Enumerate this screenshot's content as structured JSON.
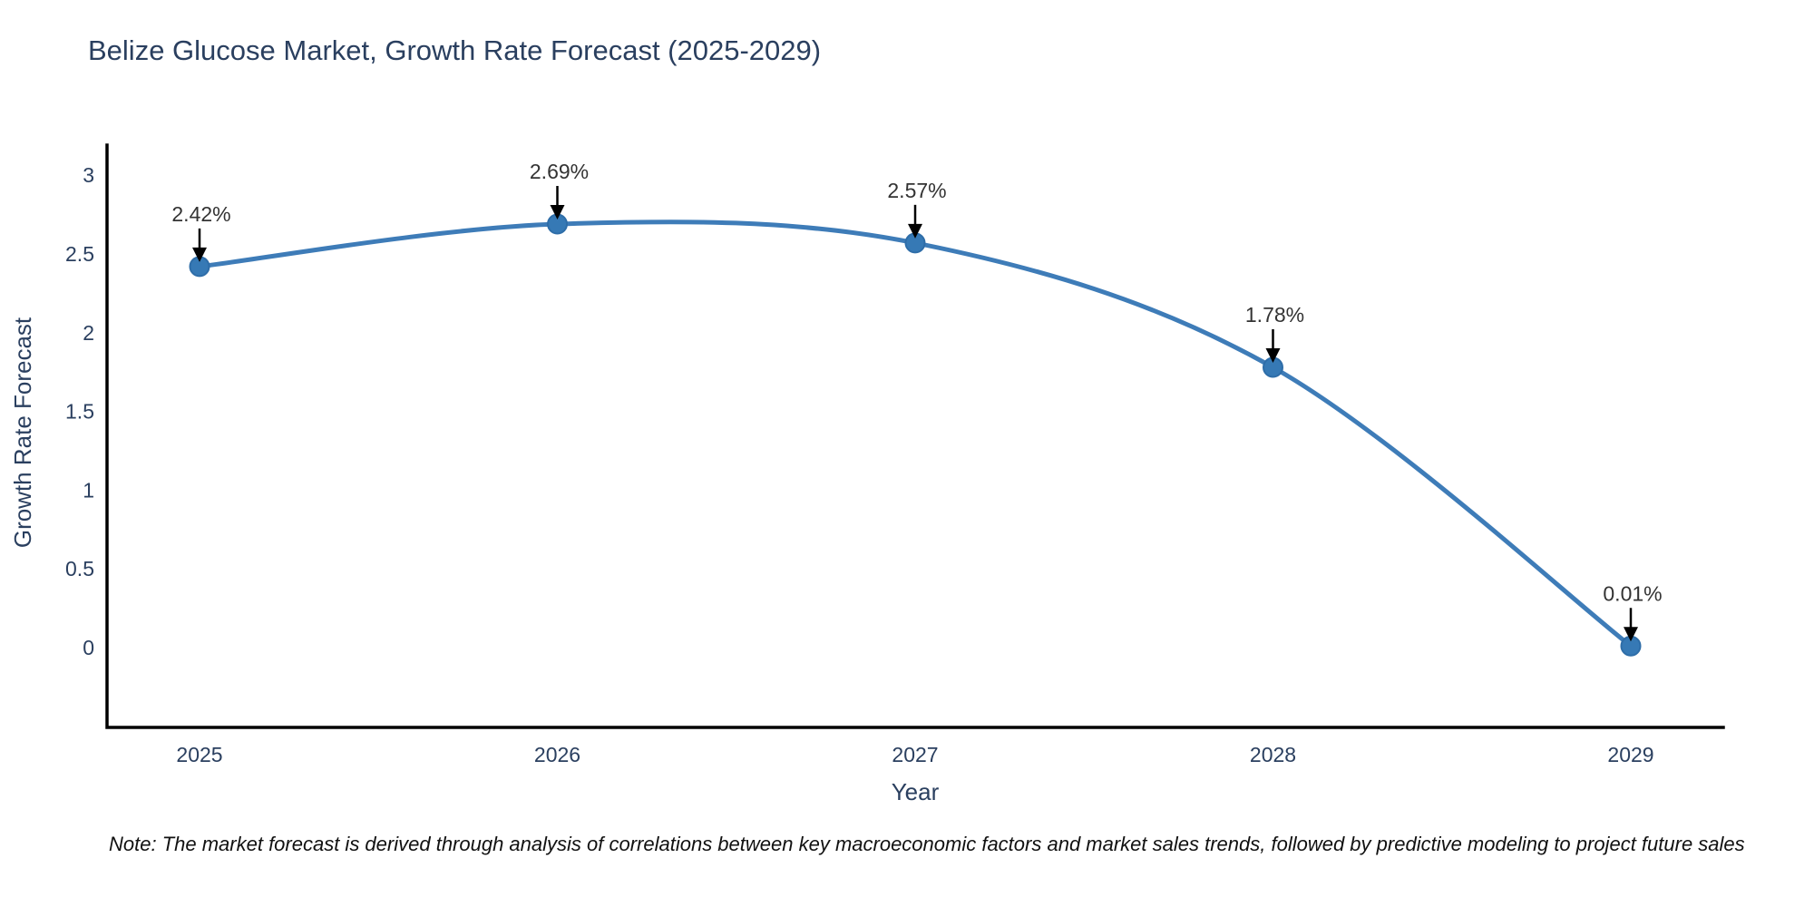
{
  "chart": {
    "title": "Belize Glucose Market, Growth Rate Forecast (2025-2029)",
    "xlabel": "Year",
    "ylabel": "Growth Rate Forecast",
    "note": "Note: The market forecast is derived through analysis of correlations between key macroeconomic factors and market sales trends, followed by predictive modeling to project future sales"
  },
  "chart_data": {
    "type": "line",
    "title": "Belize Glucose Market, Growth Rate Forecast (2025-2029)",
    "xlabel": "Year",
    "ylabel": "Growth Rate Forecast",
    "x": [
      2025,
      2026,
      2027,
      2028,
      2029
    ],
    "y": [
      2.42,
      2.69,
      2.57,
      1.78,
      0.01
    ],
    "point_labels": [
      "2.42%",
      "2.69%",
      "2.57%",
      "1.78%",
      "0.01%"
    ],
    "yticks": [
      0,
      0.5,
      1,
      1.5,
      2,
      2.5,
      3
    ],
    "xticks": [
      2025,
      2026,
      2027,
      2028,
      2029
    ],
    "ylim": [
      -0.51,
      3.2
    ],
    "xlim": [
      2024.74,
      2029.26
    ],
    "grid": false,
    "legend": false,
    "curve": "spline",
    "annotations_arrow_color": "#000000",
    "line_color": "#3E7CB8",
    "marker_color": "#3679B5",
    "marker_edge_color": "#2E6DA8",
    "axis_line_color": "#000000",
    "tick_text_color": "#2a3f5f",
    "annotation_text_color": "#333333"
  }
}
